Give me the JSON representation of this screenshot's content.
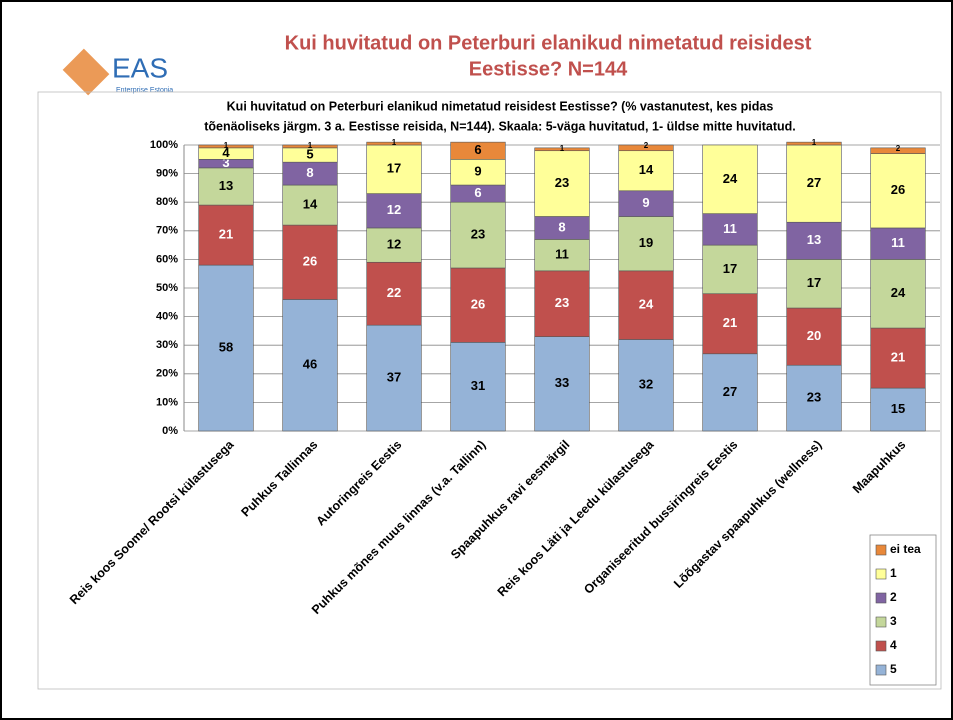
{
  "slide_title": [
    "Kui huvitatud on Peterburi elanikud nimetatud reisidest",
    "Eestisse? N=144"
  ],
  "logo": {
    "name": "EAS",
    "tagline": "Enterprise Estonia"
  },
  "chart_data": {
    "type": "stacked_bar",
    "title": [
      "Kui huvitatud on Peterburi elanikud nimetatud reisidest Eestisse? (% vastanutest, kes pidas",
      "tõenäoliseks järgm. 3 a. Eestisse reisida, N=144). Skaala: 5-väga huvitatud, 1- üldse mitte huvitatud."
    ],
    "categories": [
      "Reis koos Soome/ Rootsi külastusega",
      "Puhkus Tallinnas",
      "Autoringreis Eestis",
      "Puhkus mõnes muus linnas (v.a. Tallinn)",
      "Spaapuhkus ravi eesmärgil",
      "Reis koos Läti ja Leedu külastusega",
      "Organiseeritud bussiringreis Eestis",
      "Lõõgastav spaapuhkus (wellness)",
      "Maapuhkus"
    ],
    "series": [
      {
        "name": "5",
        "color": "#95b3d7",
        "values": [
          58,
          46,
          37,
          31,
          33,
          32,
          27,
          23,
          15
        ]
      },
      {
        "name": "4",
        "color": "#c0504d",
        "values": [
          21,
          26,
          22,
          26,
          23,
          24,
          21,
          20,
          21
        ]
      },
      {
        "name": "3",
        "color": "#c4d79b",
        "values": [
          13,
          14,
          12,
          23,
          11,
          19,
          17,
          17,
          24
        ]
      },
      {
        "name": "2",
        "color": "#8064a2",
        "values": [
          3,
          8,
          12,
          6,
          8,
          9,
          11,
          13,
          11
        ]
      },
      {
        "name": "1",
        "color": "#ffff99",
        "values": [
          4,
          5,
          17,
          9,
          23,
          14,
          24,
          27,
          26
        ]
      },
      {
        "name": "ei tea",
        "color": "#e8883a",
        "values": [
          1,
          1,
          1,
          6,
          1,
          2,
          null,
          1,
          2
        ]
      }
    ],
    "ylim": [
      0,
      100
    ],
    "yticks": [
      {
        "value": 0,
        "label": "0%"
      },
      {
        "value": 10,
        "label": "10%"
      },
      {
        "value": 20,
        "label": "20%"
      },
      {
        "value": 30,
        "label": "30%"
      },
      {
        "value": 40,
        "label": "40%"
      },
      {
        "value": 50,
        "label": "50%"
      },
      {
        "value": 60,
        "label": "60%"
      },
      {
        "value": 70,
        "label": "70%"
      },
      {
        "value": 80,
        "label": "80%"
      },
      {
        "value": 90,
        "label": "90%"
      },
      {
        "value": 100,
        "label": "100%"
      }
    ],
    "grid": true,
    "legend": "bottom-right"
  }
}
